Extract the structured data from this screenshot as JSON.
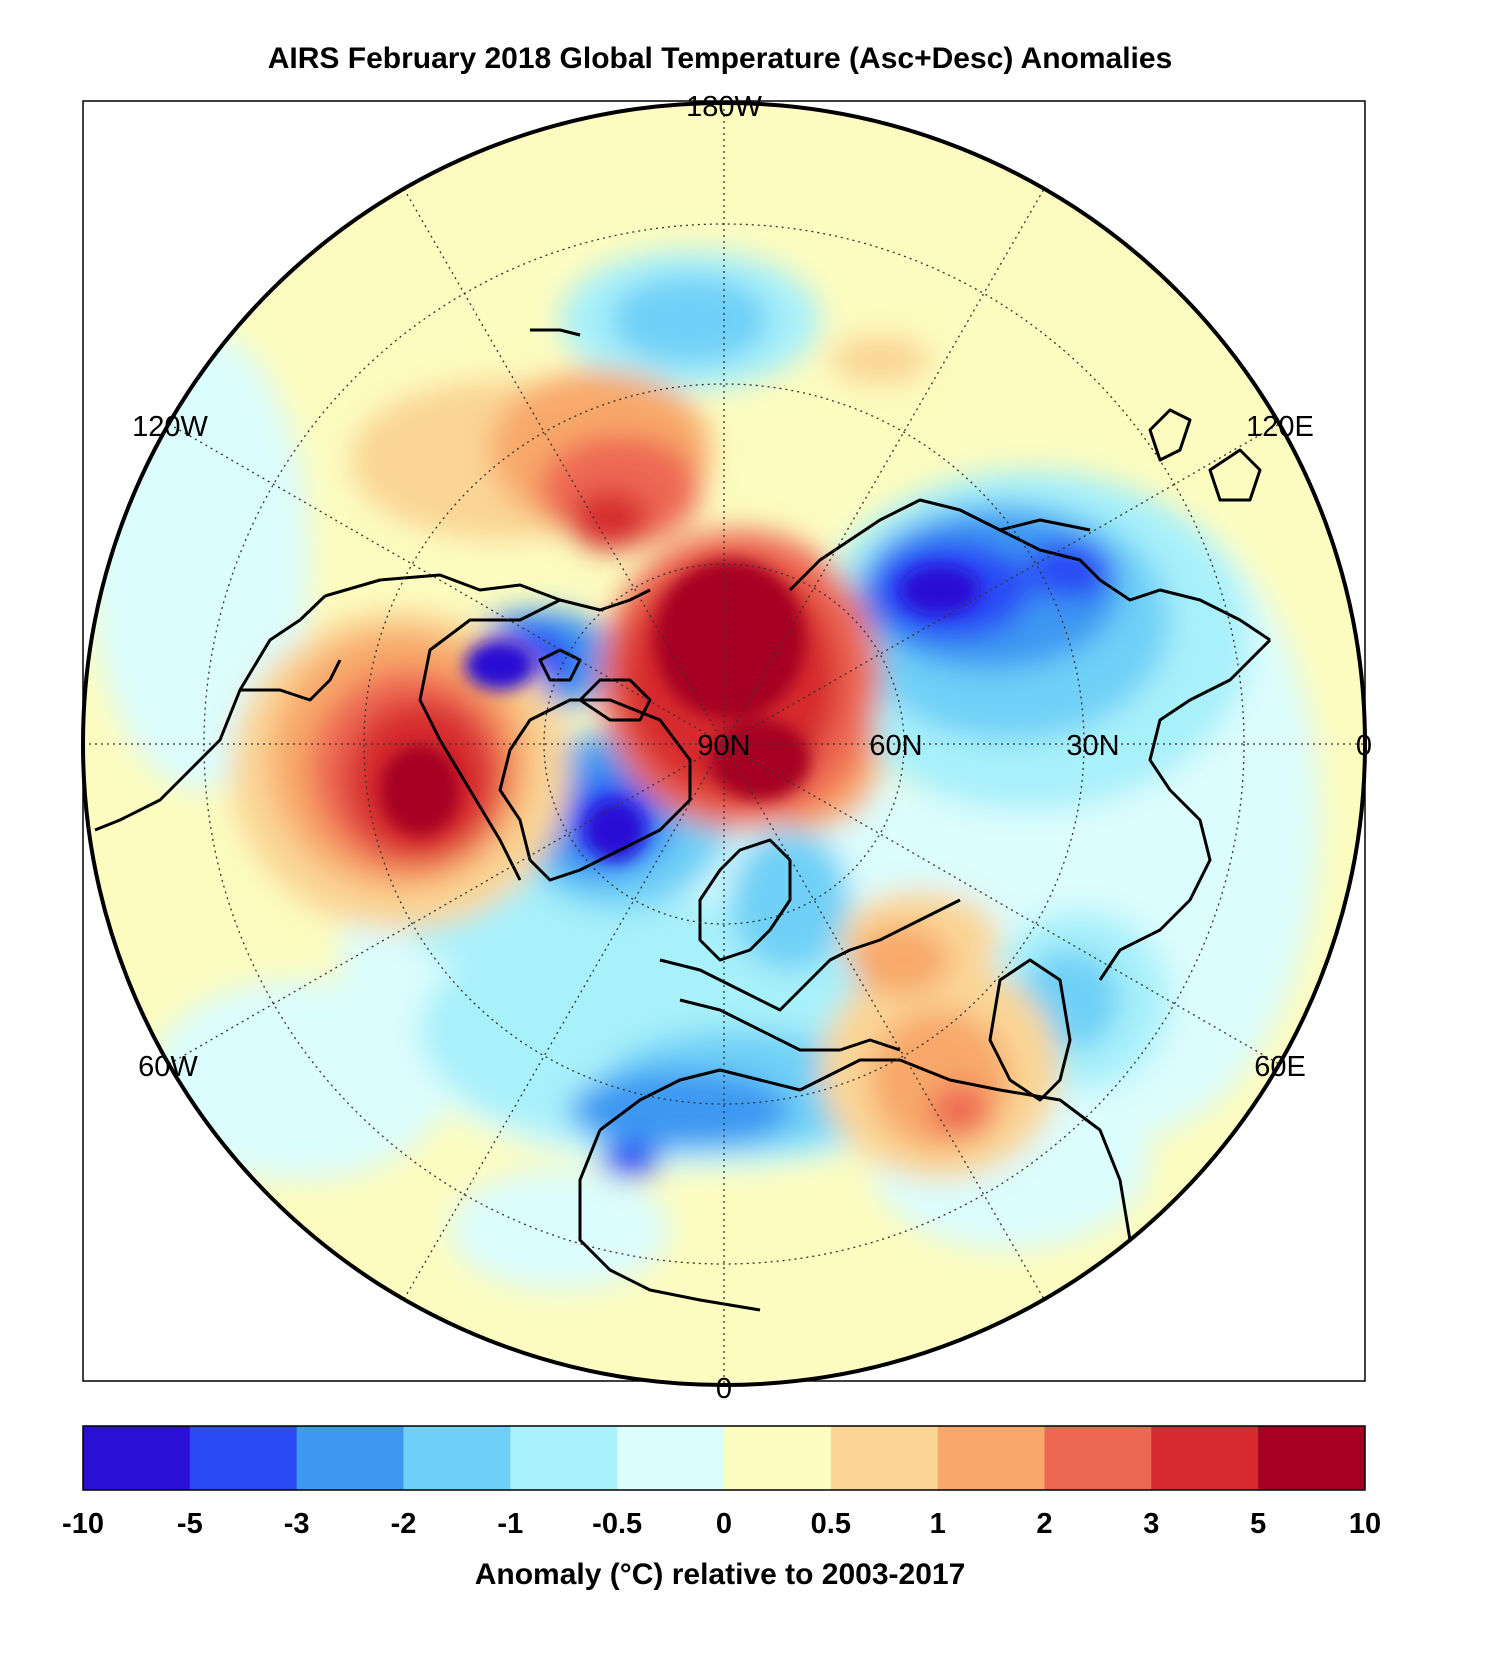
{
  "title": "AIRS February 2018 Global Temperature (Asc+Desc) Anomalies",
  "map": {
    "projection": "north polar stereographic",
    "meridian_labels": {
      "top": "180W",
      "upper_left": "120W",
      "upper_right": "120E",
      "lower_left": "60W",
      "lower_right": "60E",
      "right": "0",
      "bottom": "0"
    },
    "parallel_labels": [
      "90N",
      "60N",
      "30N"
    ]
  },
  "colorbar": {
    "ticks": [
      "-10",
      "-5",
      "-3",
      "-2",
      "-1",
      "-0.5",
      "0",
      "0.5",
      "1",
      "2",
      "3",
      "5",
      "10"
    ],
    "colors": [
      "#2a0fd4",
      "#2b4af5",
      "#3d98f2",
      "#6fd0f7",
      "#a8f0fa",
      "#dcfdfd",
      "#fcfcc0",
      "#fad595",
      "#f8a86a",
      "#ee6752",
      "#d62a2e",
      "#a50024"
    ],
    "label": "Anomaly (°C) relative to 2003-2017"
  }
}
